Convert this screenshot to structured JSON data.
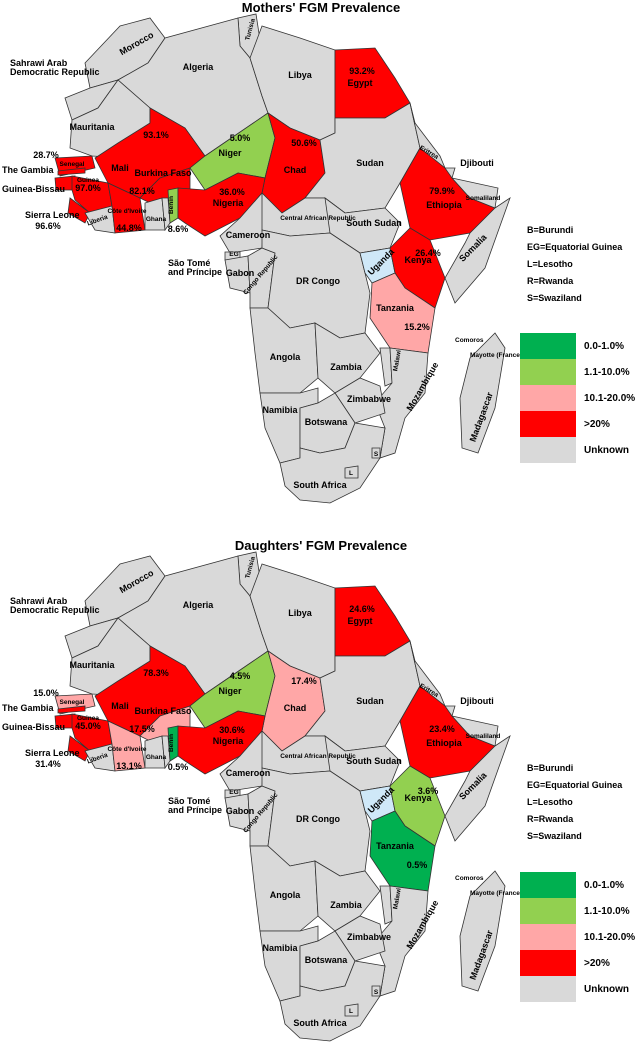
{
  "colors": {
    "c0": "#00b050",
    "c1": "#92d050",
    "c2": "#ffa7a7",
    "c3": "#ff0000",
    "unknown": "#d9d9d9",
    "lightblue": "#cfe8f8",
    "ocean": "#ffffff"
  },
  "legend": [
    {
      "label": "0.0-1.0%",
      "color": "#00b050"
    },
    {
      "label": "1.1-10.0%",
      "color": "#92d050"
    },
    {
      "label": "10.1-20.0%",
      "color": "#ffa7a7"
    },
    {
      "label": ">20%",
      "color": "#ff0000"
    },
    {
      "label": "Unknown",
      "color": "#d9d9d9"
    }
  ],
  "abbreviations": [
    "B=Burundi",
    "EG=Equatorial Guinea",
    "L=Lesotho",
    "R=Rwanda",
    "S=Swaziland"
  ],
  "country_names": {
    "morocco": "Morocco",
    "tunisia": "Tunisia",
    "algeria": "Algeria",
    "libya": "Libya",
    "egypt": "Egypt",
    "sahrawi": "Sahrawi Arab Democratic Republic",
    "mauritania": "Mauritania",
    "mali": "Mali",
    "niger": "Niger",
    "chad": "Chad",
    "sudan": "Sudan",
    "eritrea": "Eritrea",
    "djibouti": "Djibouti",
    "somaliland": "Somaliland",
    "ethiopia": "Ethiopia",
    "somalia": "Somalia",
    "senegal": "Senegal",
    "gambia": "The Gambia",
    "guinea_bissau": "Guinea-Bissau",
    "guinea": "Guinea",
    "sierra_leone": "Sierra Leone",
    "liberia": "Liberia",
    "cote": "Côte d'Ivoire",
    "burkina": "Burkina Faso",
    "ghana": "Ghana",
    "benin": "Benin",
    "nigeria": "Nigeria",
    "car": "Central African Republic",
    "south_sudan": "South Sudan",
    "cameroon": "Cameroon",
    "eg": "EG",
    "gabon": "Gabon",
    "congo": "Congo Republic",
    "sao_tome": "São Tomé and Príncipe",
    "drc": "DR Congo",
    "uganda": "Uganda",
    "kenya": "Kenya",
    "tanzania": "Tanzania",
    "comoros": "Comoros",
    "mayotte": "Mayotte (France)",
    "angola": "Angola",
    "zambia": "Zambia",
    "malawi": "Malawi",
    "mozambique": "Mozambique",
    "madagascar": "Madagascar",
    "zimbabwe": "Zimbabwe",
    "namibia": "Namibia",
    "botswana": "Botswana",
    "south_africa": "South Africa",
    "togo": "Togo",
    "s": "S",
    "l": "L"
  },
  "panels": [
    {
      "title": "Mothers' FGM Prevalence",
      "fills": {
        "egypt": "c3",
        "mali": "c3",
        "niger": "c1",
        "chad": "c3",
        "ethiopia": "c3",
        "kenya": "c3",
        "tanzania": "c2",
        "nigeria": "c3",
        "burkina": "c3",
        "cote": "c3",
        "senegal": "c3",
        "gambia": "c3",
        "guinea_bissau": "c3",
        "guinea": "c3",
        "sierra_leone": "c3",
        "benin": "c1",
        "uganda": "lightblue"
      },
      "values": {
        "egypt": "93.2%",
        "mali": "93.1%",
        "niger": "5.0%",
        "chad": "50.6%",
        "ethiopia": "79.9%",
        "kenya": "26.4%",
        "tanzania": "15.2%",
        "nigeria": "36.0%",
        "burkina": "82.1%",
        "cote": "44.8%",
        "senegal": "28.7%",
        "guinea": "97.0%",
        "sierra_leone": "96.6%",
        "benin": "8.6%"
      }
    },
    {
      "title": "Daughters' FGM Prevalence",
      "fills": {
        "egypt": "c3",
        "mali": "c3",
        "niger": "c1",
        "chad": "c2",
        "ethiopia": "c3",
        "kenya": "c1",
        "tanzania": "c0",
        "nigeria": "c3",
        "burkina": "c2",
        "cote": "c2",
        "senegal": "c2",
        "gambia": "c3",
        "guinea_bissau": "c3",
        "guinea": "c3",
        "sierra_leone": "c3",
        "benin": "c0",
        "uganda": "lightblue"
      },
      "values": {
        "egypt": "24.6%",
        "mali": "78.3%",
        "niger": "4.5%",
        "chad": "17.4%",
        "ethiopia": "23.4%",
        "kenya": "3.6%",
        "tanzania": "0.5%",
        "nigeria": "30.6%",
        "burkina": "17.5%",
        "cote": "13.1%",
        "senegal": "15.0%",
        "guinea": "45.0%",
        "sierra_leone": "31.4%",
        "benin": "0.5%"
      }
    }
  ]
}
